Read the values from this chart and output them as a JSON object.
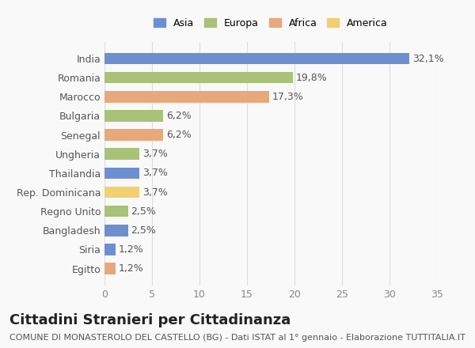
{
  "categories": [
    "Egitto",
    "Siria",
    "Bangladesh",
    "Regno Unito",
    "Rep. Dominicana",
    "Thailandia",
    "Ungheria",
    "Senegal",
    "Bulgaria",
    "Marocco",
    "Romania",
    "India"
  ],
  "values": [
    1.2,
    1.2,
    2.5,
    2.5,
    3.7,
    3.7,
    3.7,
    6.2,
    6.2,
    17.3,
    19.8,
    32.1
  ],
  "labels": [
    "1,2%",
    "1,2%",
    "2,5%",
    "2,5%",
    "3,7%",
    "3,7%",
    "3,7%",
    "6,2%",
    "6,2%",
    "17,3%",
    "19,8%",
    "32,1%"
  ],
  "colors": [
    "#e8a87c",
    "#6e8fcf",
    "#6e8fcf",
    "#a8c278",
    "#f0d070",
    "#6e8fcf",
    "#a8c278",
    "#e8a87c",
    "#a8c278",
    "#e8a87c",
    "#a8c278",
    "#6e8fcf"
  ],
  "continent": [
    "Africa",
    "Asia",
    "Asia",
    "Europa",
    "America",
    "Asia",
    "Europa",
    "Africa",
    "Europa",
    "Africa",
    "Europa",
    "Asia"
  ],
  "legend_labels": [
    "Asia",
    "Europa",
    "Africa",
    "America"
  ],
  "legend_colors": [
    "#6e8fcf",
    "#a8c278",
    "#e8a87c",
    "#f0d070"
  ],
  "xlim": [
    0,
    35
  ],
  "xticks": [
    0,
    5,
    10,
    15,
    20,
    25,
    30,
    35
  ],
  "title": "Cittadini Stranieri per Cittadinanza",
  "subtitle": "COMUNE DI MONASTEROLO DEL CASTELLO (BG) - Dati ISTAT al 1° gennaio - Elaborazione TUTTITALIA.IT",
  "bg_color": "#f9f9f9",
  "grid_color": "#dddddd",
  "bar_height": 0.6,
  "label_fontsize": 9,
  "tick_fontsize": 9,
  "title_fontsize": 13,
  "subtitle_fontsize": 8
}
